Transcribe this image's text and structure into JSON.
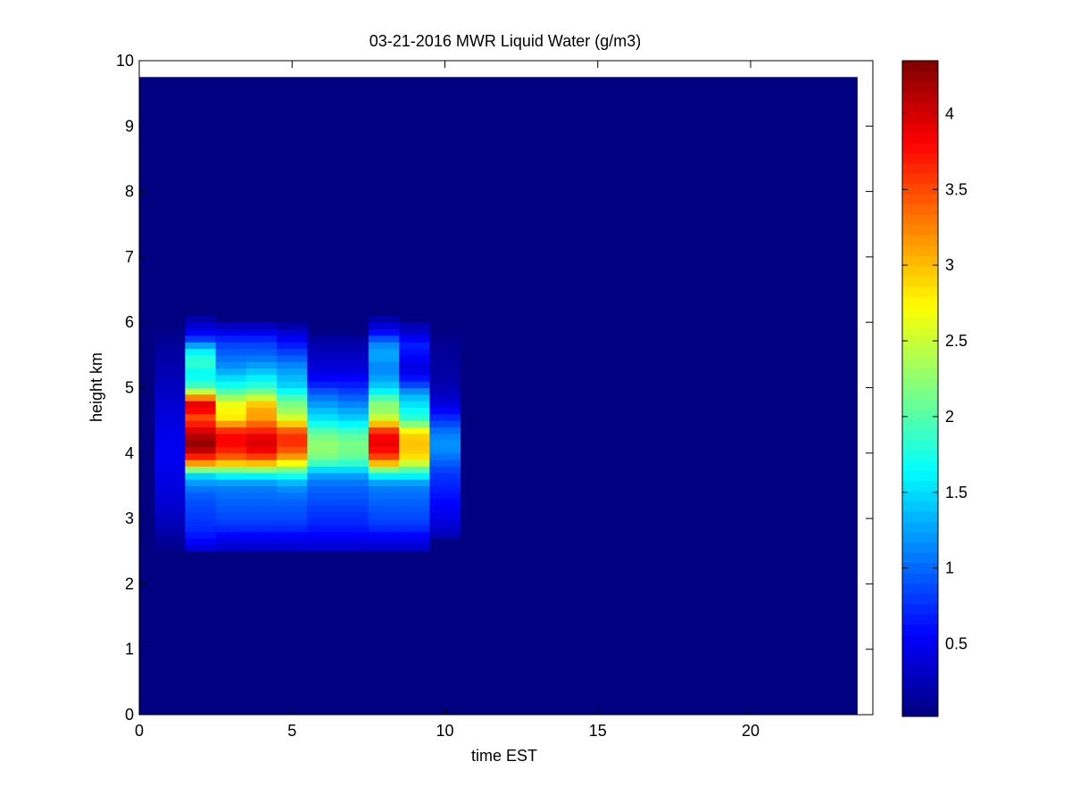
{
  "chart_data": {
    "type": "heatmap",
    "title": "03-21-2016 MWR Liquid Water (g/m3)",
    "xlabel": "time EST",
    "ylabel": "height km",
    "xlim": [
      0,
      24
    ],
    "ylim": [
      0,
      10
    ],
    "x_ticks": [
      "0",
      "5",
      "10",
      "15",
      "20"
    ],
    "y_ticks": [
      "0",
      "1",
      "2",
      "3",
      "4",
      "5",
      "6",
      "7",
      "8",
      "9",
      "10"
    ],
    "colorbar": {
      "colormap": "jet",
      "range": [
        0.02,
        4.35
      ],
      "ticks": [
        "0.5",
        "1",
        "1.5",
        "2",
        "2.5",
        "3",
        "3.5",
        "4"
      ]
    },
    "data_extent": {
      "x": [
        0,
        23.5
      ],
      "y": [
        0,
        9.75
      ]
    },
    "background_value": 0.02,
    "x_bins": [
      {
        "x0": 0.5,
        "x1": 1.5
      },
      {
        "x0": 1.5,
        "x1": 2.5
      },
      {
        "x0": 2.5,
        "x1": 3.5
      },
      {
        "x0": 3.5,
        "x1": 4.5
      },
      {
        "x0": 4.5,
        "x1": 5.5
      },
      {
        "x0": 5.5,
        "x1": 6.5
      },
      {
        "x0": 6.5,
        "x1": 7.5
      },
      {
        "x0": 7.5,
        "x1": 8.5
      },
      {
        "x0": 8.5,
        "x1": 9.5
      },
      {
        "x0": 9.5,
        "x1": 10.5
      }
    ],
    "profiles": [
      [
        [
          2.5,
          0.05
        ],
        [
          2.7,
          0.15
        ],
        [
          2.9,
          0.25
        ],
        [
          3.2,
          0.35
        ],
        [
          3.6,
          0.45
        ],
        [
          4.0,
          0.5
        ],
        [
          4.4,
          0.45
        ],
        [
          4.8,
          0.35
        ],
        [
          5.2,
          0.25
        ],
        [
          5.6,
          0.15
        ],
        [
          5.9,
          0.05
        ]
      ],
      [
        [
          2.5,
          0.3
        ],
        [
          2.6,
          0.5
        ],
        [
          2.8,
          0.7
        ],
        [
          3.0,
          0.8
        ],
        [
          3.3,
          0.9
        ],
        [
          3.5,
          1.1
        ],
        [
          3.7,
          1.6
        ],
        [
          3.8,
          2.8
        ],
        [
          3.9,
          3.5
        ],
        [
          4.1,
          4.3
        ],
        [
          4.3,
          4.1
        ],
        [
          4.4,
          3.8
        ],
        [
          4.6,
          3.4
        ],
        [
          4.7,
          4.2
        ],
        [
          4.8,
          3.6
        ],
        [
          4.9,
          2.9
        ],
        [
          5.0,
          2.0
        ],
        [
          5.2,
          1.6
        ],
        [
          5.4,
          1.9
        ],
        [
          5.6,
          1.5
        ],
        [
          5.7,
          1.0
        ],
        [
          5.8,
          0.6
        ],
        [
          6.0,
          0.3
        ],
        [
          6.1,
          0.1
        ]
      ],
      [
        [
          2.5,
          0.3
        ],
        [
          2.7,
          0.5
        ],
        [
          2.9,
          0.8
        ],
        [
          3.1,
          0.9
        ],
        [
          3.3,
          1.0
        ],
        [
          3.5,
          1.1
        ],
        [
          3.6,
          1.4
        ],
        [
          3.7,
          1.8
        ],
        [
          3.8,
          2.6
        ],
        [
          3.9,
          3.3
        ],
        [
          4.1,
          3.8
        ],
        [
          4.3,
          3.8
        ],
        [
          4.4,
          3.4
        ],
        [
          4.5,
          2.9
        ],
        [
          4.6,
          2.7
        ],
        [
          4.7,
          2.8
        ],
        [
          4.8,
          2.5
        ],
        [
          5.0,
          1.8
        ],
        [
          5.3,
          1.2
        ],
        [
          5.5,
          1.0
        ],
        [
          5.7,
          0.8
        ],
        [
          5.9,
          0.4
        ],
        [
          6.0,
          0.2
        ]
      ],
      [
        [
          2.5,
          0.3
        ],
        [
          2.7,
          0.5
        ],
        [
          2.9,
          0.8
        ],
        [
          3.1,
          0.9
        ],
        [
          3.3,
          1.0
        ],
        [
          3.5,
          1.1
        ],
        [
          3.6,
          1.4
        ],
        [
          3.7,
          1.8
        ],
        [
          3.8,
          2.7
        ],
        [
          3.9,
          3.3
        ],
        [
          4.0,
          3.8
        ],
        [
          4.2,
          4.0
        ],
        [
          4.3,
          3.8
        ],
        [
          4.4,
          3.5
        ],
        [
          4.6,
          3.0
        ],
        [
          4.7,
          3.2
        ],
        [
          4.8,
          2.7
        ],
        [
          5.0,
          1.9
        ],
        [
          5.3,
          1.3
        ],
        [
          5.5,
          1.0
        ],
        [
          5.7,
          0.8
        ],
        [
          5.9,
          0.4
        ],
        [
          6.0,
          0.2
        ]
      ],
      [
        [
          2.5,
          0.3
        ],
        [
          2.7,
          0.5
        ],
        [
          2.9,
          0.8
        ],
        [
          3.1,
          0.9
        ],
        [
          3.3,
          1.0
        ],
        [
          3.5,
          1.2
        ],
        [
          3.6,
          1.5
        ],
        [
          3.7,
          1.9
        ],
        [
          3.8,
          2.4
        ],
        [
          3.9,
          3.0
        ],
        [
          4.1,
          3.6
        ],
        [
          4.3,
          3.6
        ],
        [
          4.4,
          3.2
        ],
        [
          4.5,
          2.7
        ],
        [
          4.6,
          2.4
        ],
        [
          4.8,
          2.1
        ],
        [
          5.0,
          1.5
        ],
        [
          5.3,
          1.2
        ],
        [
          5.5,
          0.9
        ],
        [
          5.7,
          0.6
        ],
        [
          5.9,
          0.3
        ],
        [
          6.0,
          0.1
        ]
      ],
      [
        [
          2.5,
          0.3
        ],
        [
          2.7,
          0.5
        ],
        [
          2.9,
          0.7
        ],
        [
          3.1,
          0.8
        ],
        [
          3.3,
          0.9
        ],
        [
          3.5,
          1.0
        ],
        [
          3.7,
          1.3
        ],
        [
          3.8,
          1.7
        ],
        [
          3.9,
          2.1
        ],
        [
          4.1,
          2.3
        ],
        [
          4.3,
          2.1
        ],
        [
          4.5,
          1.6
        ],
        [
          4.7,
          1.3
        ],
        [
          4.9,
          1.0
        ],
        [
          5.1,
          0.6
        ],
        [
          5.3,
          0.4
        ],
        [
          5.5,
          0.3
        ],
        [
          5.7,
          0.2
        ],
        [
          5.8,
          0.1
        ]
      ],
      [
        [
          2.5,
          0.3
        ],
        [
          2.7,
          0.5
        ],
        [
          2.9,
          0.7
        ],
        [
          3.1,
          0.8
        ],
        [
          3.3,
          0.9
        ],
        [
          3.5,
          1.0
        ],
        [
          3.7,
          1.3
        ],
        [
          3.8,
          1.7
        ],
        [
          3.9,
          2.0
        ],
        [
          4.1,
          2.2
        ],
        [
          4.3,
          2.0
        ],
        [
          4.5,
          1.5
        ],
        [
          4.7,
          1.2
        ],
        [
          4.9,
          0.9
        ],
        [
          5.1,
          0.6
        ],
        [
          5.3,
          0.4
        ],
        [
          5.5,
          0.3
        ],
        [
          5.7,
          0.2
        ],
        [
          5.8,
          0.1
        ]
      ],
      [
        [
          2.5,
          0.3
        ],
        [
          2.7,
          0.5
        ],
        [
          2.9,
          0.8
        ],
        [
          3.1,
          0.9
        ],
        [
          3.3,
          1.0
        ],
        [
          3.5,
          1.1
        ],
        [
          3.6,
          1.4
        ],
        [
          3.7,
          1.8
        ],
        [
          3.8,
          2.6
        ],
        [
          3.9,
          3.4
        ],
        [
          4.1,
          3.9
        ],
        [
          4.3,
          3.8
        ],
        [
          4.4,
          3.3
        ],
        [
          4.5,
          2.7
        ],
        [
          4.6,
          2.3
        ],
        [
          4.8,
          2.2
        ],
        [
          4.9,
          1.7
        ],
        [
          5.1,
          1.3
        ],
        [
          5.3,
          1.1
        ],
        [
          5.5,
          1.3
        ],
        [
          5.7,
          1.1
        ],
        [
          5.8,
          0.7
        ],
        [
          6.0,
          0.3
        ],
        [
          6.1,
          0.1
        ]
      ],
      [
        [
          2.5,
          0.3
        ],
        [
          2.7,
          0.5
        ],
        [
          2.9,
          0.8
        ],
        [
          3.1,
          0.9
        ],
        [
          3.3,
          1.0
        ],
        [
          3.5,
          1.1
        ],
        [
          3.6,
          1.4
        ],
        [
          3.7,
          1.8
        ],
        [
          3.8,
          2.2
        ],
        [
          3.9,
          2.8
        ],
        [
          4.1,
          3.0
        ],
        [
          4.3,
          2.9
        ],
        [
          4.4,
          2.5
        ],
        [
          4.5,
          1.9
        ],
        [
          4.7,
          1.6
        ],
        [
          4.9,
          1.3
        ],
        [
          5.1,
          0.7
        ],
        [
          5.3,
          0.4
        ],
        [
          5.5,
          0.6
        ],
        [
          5.7,
          0.7
        ],
        [
          5.8,
          0.4
        ],
        [
          6.0,
          0.2
        ]
      ],
      [
        [
          2.7,
          0.2
        ],
        [
          2.9,
          0.4
        ],
        [
          3.1,
          0.5
        ],
        [
          3.3,
          0.6
        ],
        [
          3.5,
          0.7
        ],
        [
          3.7,
          0.8
        ],
        [
          3.9,
          1.0
        ],
        [
          4.1,
          1.2
        ],
        [
          4.3,
          1.1
        ],
        [
          4.5,
          0.8
        ],
        [
          4.7,
          0.5
        ],
        [
          4.9,
          0.3
        ],
        [
          5.1,
          0.2
        ],
        [
          5.4,
          0.15
        ],
        [
          5.7,
          0.1
        ],
        [
          5.8,
          0.05
        ]
      ]
    ]
  }
}
